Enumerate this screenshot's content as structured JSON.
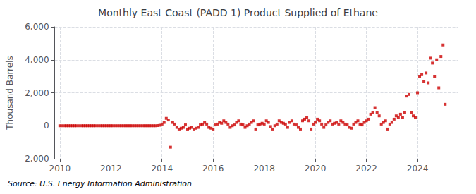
{
  "chart_data": {
    "type": "scatter",
    "title": "Monthly East Coast (PADD 1) Product Supplied of Ethane",
    "ylabel": "Thousand Barrels",
    "source": "Source: U.S. Energy Information Administration",
    "color": "#cc0000",
    "marker": "square",
    "grid": true,
    "xlim": [
      2009.8,
      2025.6
    ],
    "xticks": [
      2010,
      2012,
      2014,
      2016,
      2018,
      2020,
      2022,
      2024
    ],
    "ylim": [
      -2000,
      6000
    ],
    "yticks": [
      {
        "value": -2000,
        "label": "-2,000"
      },
      0,
      {
        "value": 2000,
        "label": "2,000"
      },
      {
        "value": 4000,
        "label": "4,000"
      },
      {
        "value": 6000,
        "label": "6,000"
      }
    ],
    "x": [
      2010.0,
      2010.083,
      2010.167,
      2010.25,
      2010.333,
      2010.417,
      2010.5,
      2010.583,
      2010.667,
      2010.75,
      2010.833,
      2010.917,
      2011.0,
      2011.083,
      2011.167,
      2011.25,
      2011.333,
      2011.417,
      2011.5,
      2011.583,
      2011.667,
      2011.75,
      2011.833,
      2011.917,
      2012.0,
      2012.083,
      2012.167,
      2012.25,
      2012.333,
      2012.417,
      2012.5,
      2012.583,
      2012.667,
      2012.75,
      2012.833,
      2012.917,
      2013.0,
      2013.083,
      2013.167,
      2013.25,
      2013.333,
      2013.417,
      2013.5,
      2013.583,
      2013.667,
      2013.75,
      2013.833,
      2013.917,
      2014.0,
      2014.083,
      2014.167,
      2014.25,
      2014.333,
      2014.417,
      2014.5,
      2014.583,
      2014.667,
      2014.75,
      2014.833,
      2014.917,
      2015.0,
      2015.083,
      2015.167,
      2015.25,
      2015.333,
      2015.417,
      2015.5,
      2015.583,
      2015.667,
      2015.75,
      2015.833,
      2015.917,
      2016.0,
      2016.083,
      2016.167,
      2016.25,
      2016.333,
      2016.417,
      2016.5,
      2016.583,
      2016.667,
      2016.75,
      2016.833,
      2016.917,
      2017.0,
      2017.083,
      2017.167,
      2017.25,
      2017.333,
      2017.417,
      2017.5,
      2017.583,
      2017.667,
      2017.75,
      2017.833,
      2017.917,
      2018.0,
      2018.083,
      2018.167,
      2018.25,
      2018.333,
      2018.417,
      2018.5,
      2018.583,
      2018.667,
      2018.75,
      2018.833,
      2018.917,
      2019.0,
      2019.083,
      2019.167,
      2019.25,
      2019.333,
      2019.417,
      2019.5,
      2019.583,
      2019.667,
      2019.75,
      2019.833,
      2019.917,
      2020.0,
      2020.083,
      2020.167,
      2020.25,
      2020.333,
      2020.417,
      2020.5,
      2020.583,
      2020.667,
      2020.75,
      2020.833,
      2020.917,
      2021.0,
      2021.083,
      2021.167,
      2021.25,
      2021.333,
      2021.417,
      2021.5,
      2021.583,
      2021.667,
      2021.75,
      2021.833,
      2021.917,
      2022.0,
      2022.083,
      2022.167,
      2022.25,
      2022.333,
      2022.417,
      2022.5,
      2022.583,
      2022.667,
      2022.75,
      2022.833,
      2022.917,
      2023.0,
      2023.083,
      2023.167,
      2023.25,
      2023.333,
      2023.417,
      2023.5,
      2023.583,
      2023.667,
      2023.75,
      2023.833,
      2023.917,
      2024.0,
      2024.083,
      2024.167,
      2024.25,
      2024.333,
      2024.417,
      2024.5,
      2024.583,
      2024.667,
      2024.75,
      2024.833,
      2024.917,
      2025.0,
      2025.083
    ],
    "values": [
      0,
      0,
      0,
      0,
      0,
      0,
      0,
      0,
      0,
      0,
      0,
      0,
      0,
      0,
      0,
      0,
      0,
      0,
      0,
      0,
      0,
      0,
      0,
      0,
      0,
      0,
      0,
      0,
      0,
      0,
      0,
      0,
      0,
      0,
      0,
      0,
      0,
      0,
      0,
      0,
      0,
      0,
      0,
      0,
      0,
      0,
      10,
      30,
      100,
      200,
      450,
      350,
      -1300,
      200,
      100,
      -100,
      -200,
      -150,
      -100,
      50,
      -200,
      -150,
      -100,
      -200,
      -150,
      -100,
      50,
      100,
      200,
      100,
      -100,
      -150,
      -200,
      50,
      100,
      200,
      150,
      300,
      200,
      100,
      -100,
      0,
      50,
      200,
      300,
      100,
      50,
      -100,
      0,
      100,
      200,
      300,
      -200,
      50,
      100,
      150,
      100,
      300,
      200,
      -50,
      -200,
      0,
      100,
      300,
      200,
      150,
      100,
      -100,
      200,
      300,
      100,
      50,
      -100,
      -200,
      300,
      400,
      500,
      300,
      -200,
      100,
      200,
      400,
      300,
      100,
      -100,
      50,
      200,
      300,
      100,
      150,
      200,
      100,
      300,
      200,
      100,
      50,
      -100,
      -150,
      100,
      200,
      300,
      100,
      50,
      200,
      300,
      400,
      700,
      800,
      1100,
      800,
      600,
      100,
      200,
      300,
      -200,
      100,
      200,
      400,
      600,
      500,
      700,
      500,
      800,
      1800,
      1900,
      800,
      600,
      500,
      2000,
      3000,
      3100,
      2700,
      3200,
      2600,
      4100,
      3800,
      3000,
      4000,
      2300,
      4200,
      4900,
      1300
    ]
  }
}
